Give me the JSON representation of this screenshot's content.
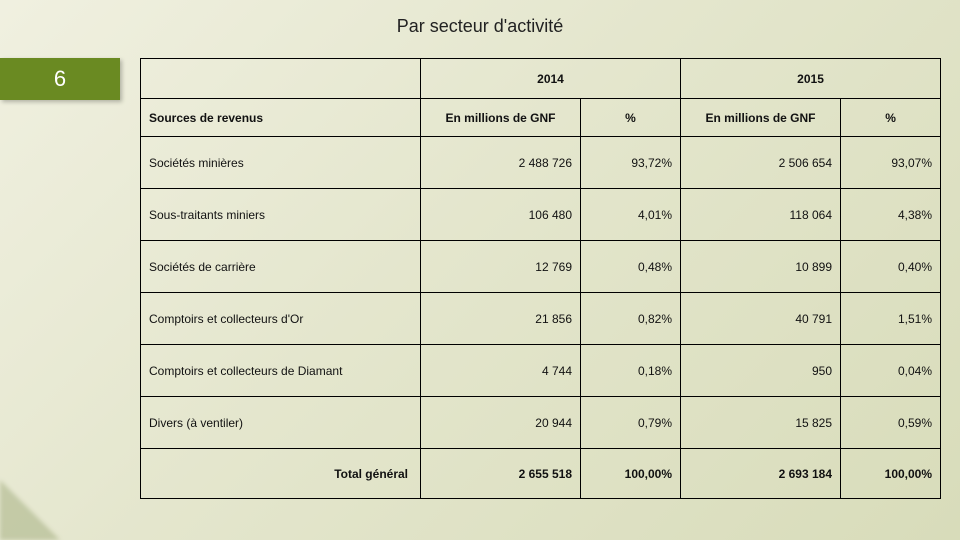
{
  "title": "Par secteur d'activité",
  "slide_number": "6",
  "colors": {
    "badge_bg": "#6a8a22",
    "badge_text": "#ffffff",
    "border": "#000000",
    "bg_grad_start": "#f0f0e0",
    "bg_grad_end": "#d8dcba"
  },
  "table": {
    "year_headers": {
      "blank": "",
      "y2014": "2014",
      "y2015": "2015"
    },
    "sub_headers": {
      "label": "Sources de revenus",
      "val": "En millions de GNF",
      "pct": "%"
    },
    "rows": [
      {
        "label": "Sociétés minières",
        "v2014": "2 488 726",
        "p2014": "93,72%",
        "v2015": "2 506 654",
        "p2015": "93,07%"
      },
      {
        "label": "Sous-traitants miniers",
        "v2014": "106 480",
        "p2014": "4,01%",
        "v2015": "118 064",
        "p2015": "4,38%"
      },
      {
        "label": "Sociétés de carrière",
        "v2014": "12 769",
        "p2014": "0,48%",
        "v2015": "10 899",
        "p2015": "0,40%"
      },
      {
        "label": "Comptoirs et collecteurs d'Or",
        "v2014": "21 856",
        "p2014": "0,82%",
        "v2015": "40 791",
        "p2015": "1,51%"
      },
      {
        "label": "Comptoirs et collecteurs de Diamant",
        "v2014": "4 744",
        "p2014": "0,18%",
        "v2015": "950",
        "p2015": "0,04%"
      },
      {
        "label": "Divers (à ventiler)",
        "v2014": "20 944",
        "p2014": "0,79%",
        "v2015": "15 825",
        "p2015": "0,59%"
      }
    ],
    "total": {
      "label": "Total général",
      "v2014": "2 655 518",
      "p2014": "100,00%",
      "v2015": "2 693 184",
      "p2015": "100,00%"
    }
  }
}
